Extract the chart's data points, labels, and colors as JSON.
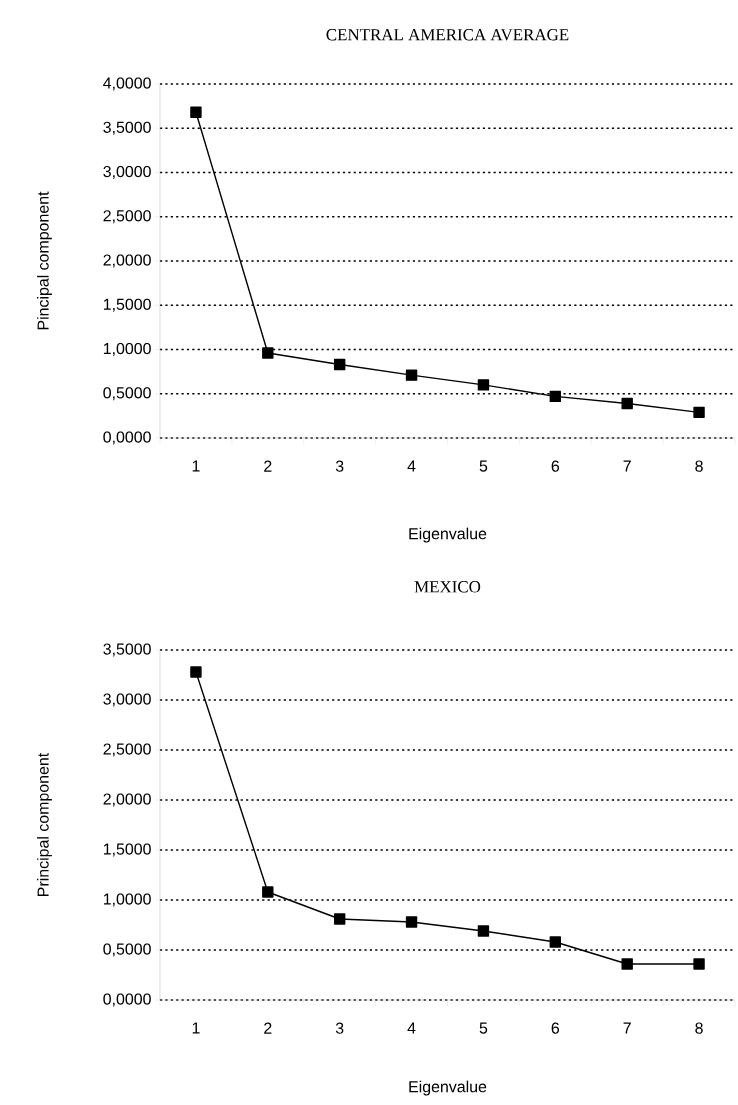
{
  "chart_data": [
    {
      "type": "line",
      "title": "CENTRAL AMERICA AVERAGE",
      "xlabel": "Eigenvalue",
      "ylabel": "Pincipal component",
      "categories": [
        "1",
        "2",
        "3",
        "4",
        "5",
        "6",
        "7",
        "8"
      ],
      "series": [
        {
          "color": "#000000",
          "values": [
            3.68,
            0.96,
            0.83,
            0.71,
            0.6,
            0.47,
            0.39,
            0.29
          ]
        }
      ],
      "ylim": [
        0,
        4
      ],
      "yticks": [
        {
          "value": 0,
          "label": "0,0000"
        },
        {
          "value": 0.5,
          "label": "0,5000"
        },
        {
          "value": 1,
          "label": "1,0000"
        },
        {
          "value": 1.5,
          "label": "1,5000"
        },
        {
          "value": 2,
          "label": "2,0000"
        },
        {
          "value": 2.5,
          "label": "2,5000"
        },
        {
          "value": 3,
          "label": "3,0000"
        },
        {
          "value": 3.5,
          "label": "3,5000"
        },
        {
          "value": 4,
          "label": "4,0000"
        }
      ],
      "grid": "y",
      "marker": "square",
      "line_style": "solid"
    },
    {
      "type": "line",
      "title": "MEXICO",
      "xlabel": "Eigenvalue",
      "ylabel": "Principal component",
      "categories": [
        "1",
        "2",
        "3",
        "4",
        "5",
        "6",
        "7",
        "8"
      ],
      "series": [
        {
          "color": "#000000",
          "values": [
            3.28,
            1.08,
            0.81,
            0.78,
            0.69,
            0.58,
            0.36,
            0.36
          ]
        }
      ],
      "ylim": [
        0,
        3.5
      ],
      "yticks": [
        {
          "value": 0,
          "label": "0,0000"
        },
        {
          "value": 0.5,
          "label": "0,5000"
        },
        {
          "value": 1,
          "label": "1,0000"
        },
        {
          "value": 1.5,
          "label": "1,5000"
        },
        {
          "value": 2,
          "label": "2,0000"
        },
        {
          "value": 2.5,
          "label": "2,5000"
        },
        {
          "value": 3,
          "label": "3,0000"
        },
        {
          "value": 3.5,
          "label": "3,5000"
        }
      ],
      "grid": "y",
      "marker": "square",
      "line_style": "solid"
    }
  ]
}
